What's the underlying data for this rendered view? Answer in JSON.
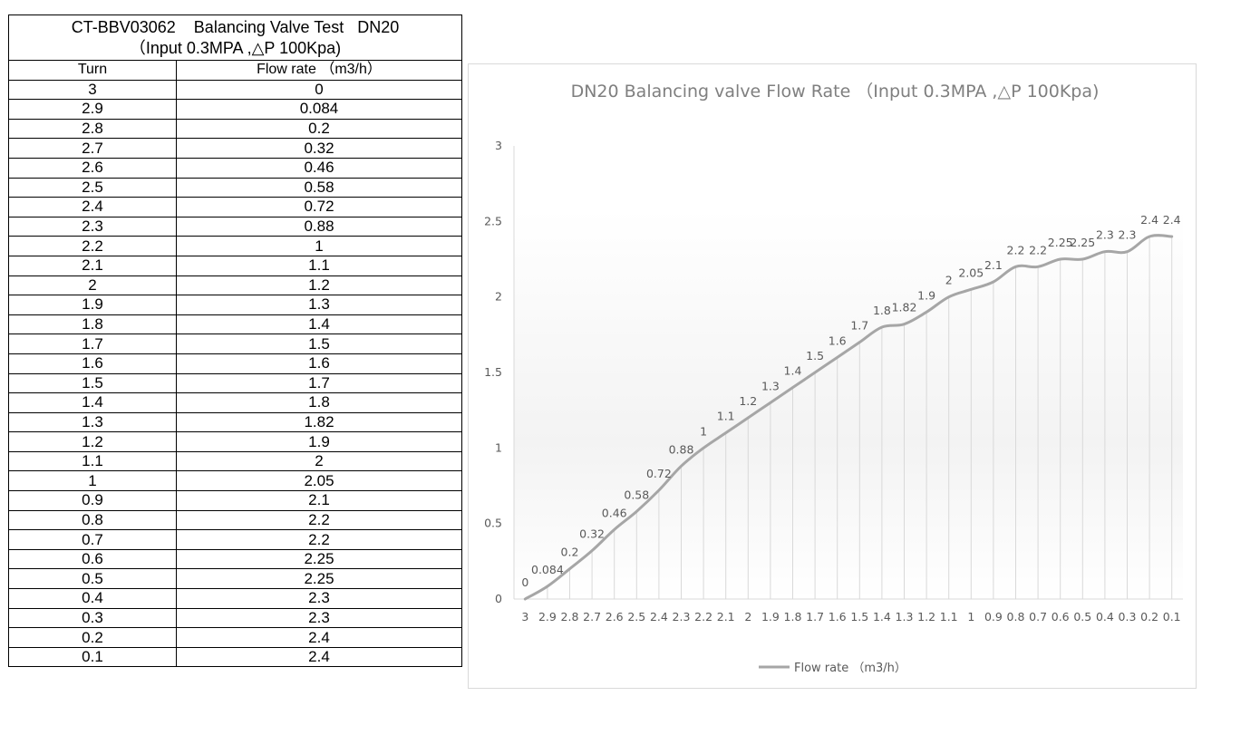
{
  "table": {
    "title_line1": "CT-BBV03062    Balancing Valve Test   DN20",
    "title_line2": "（Input 0.3MPA ,△P 100Kpa)",
    "headers": [
      "Turn",
      "Flow rate （m3/h）"
    ],
    "rows": [
      [
        "3",
        "0"
      ],
      [
        "2.9",
        "0.084"
      ],
      [
        "2.8",
        "0.2"
      ],
      [
        "2.7",
        "0.32"
      ],
      [
        "2.6",
        "0.46"
      ],
      [
        "2.5",
        "0.58"
      ],
      [
        "2.4",
        "0.72"
      ],
      [
        "2.3",
        "0.88"
      ],
      [
        "2.2",
        "1"
      ],
      [
        "2.1",
        "1.1"
      ],
      [
        "2",
        "1.2"
      ],
      [
        "1.9",
        "1.3"
      ],
      [
        "1.8",
        "1.4"
      ],
      [
        "1.7",
        "1.5"
      ],
      [
        "1.6",
        "1.6"
      ],
      [
        "1.5",
        "1.7"
      ],
      [
        "1.4",
        "1.8"
      ],
      [
        "1.3",
        "1.82"
      ],
      [
        "1.2",
        "1.9"
      ],
      [
        "1.1",
        "2"
      ],
      [
        "1",
        "2.05"
      ],
      [
        "0.9",
        "2.1"
      ],
      [
        "0.8",
        "2.2"
      ],
      [
        "0.7",
        "2.2"
      ],
      [
        "0.6",
        "2.25"
      ],
      [
        "0.5",
        "2.25"
      ],
      [
        "0.4",
        "2.3"
      ],
      [
        "0.3",
        "2.3"
      ],
      [
        "0.2",
        "2.4"
      ],
      [
        "0.1",
        "2.4"
      ]
    ]
  },
  "chart_data": {
    "type": "line",
    "title": "DN20 Balancing valve Flow Rate （Input 0.3MPA ,△P 100Kpa)",
    "categories": [
      "3",
      "2.9",
      "2.8",
      "2.7",
      "2.6",
      "2.5",
      "2.4",
      "2.3",
      "2.2",
      "2.1",
      "2",
      "1.9",
      "1.8",
      "1.7",
      "1.6",
      "1.5",
      "1.4",
      "1.3",
      "1.2",
      "1.1",
      "1",
      "0.9",
      "0.8",
      "0.7",
      "0.6",
      "0.5",
      "0.4",
      "0.3",
      "0.2",
      "0.1"
    ],
    "series": [
      {
        "name": "Flow rate （m3/h）",
        "values": [
          0,
          0.084,
          0.2,
          0.32,
          0.46,
          0.58,
          0.72,
          0.88,
          1,
          1.1,
          1.2,
          1.3,
          1.4,
          1.5,
          1.6,
          1.7,
          1.8,
          1.82,
          1.9,
          2,
          2.05,
          2.1,
          2.2,
          2.2,
          2.25,
          2.25,
          2.3,
          2.3,
          2.4,
          2.4
        ]
      }
    ],
    "data_labels": [
      "0",
      "0.084",
      "0.2",
      "0.32",
      "0.46",
      "0.58",
      "0.72",
      "0.88",
      "1",
      "1.1",
      "1.2",
      "1.3",
      "1.4",
      "1.5",
      "1.6",
      "1.7",
      "1.8",
      "1.82",
      "1.9",
      "2",
      "2.05",
      "2.1",
      "2.2",
      "2.2",
      "2.25",
      "2.25",
      "2.3",
      "2.3",
      "2.4",
      "2.4"
    ],
    "yticks": [
      "0",
      "0.5",
      "1",
      "1.5",
      "2",
      "2.5",
      "3"
    ],
    "ylim": [
      0,
      3
    ],
    "legend_position": "bottom",
    "line_color": "#a6a6a6",
    "drop_line_color": "#d9d9d9"
  }
}
